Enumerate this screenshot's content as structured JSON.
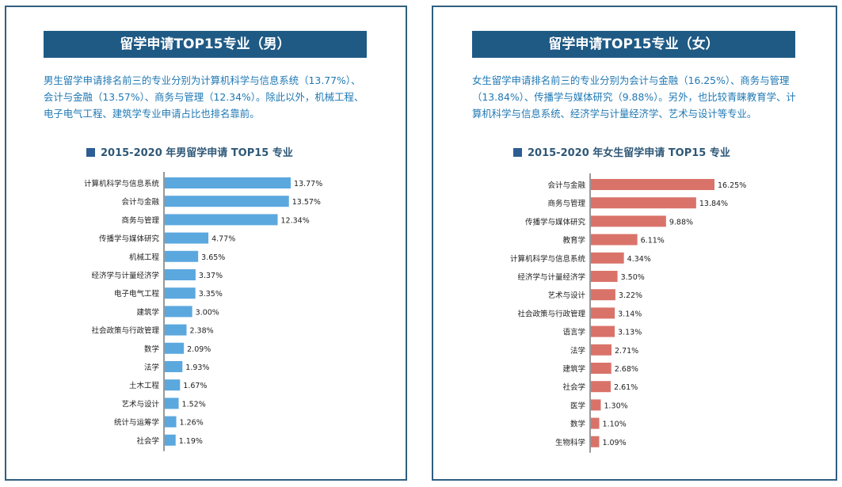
{
  "panels": [
    {
      "banner": "留学申请TOP15专业（男）",
      "description": "男生留学申请排名前三的专业分别为计算机科学与信息系统（13.77%）、会计与金融（13.57%）、商务与管理（12.34%）。除此以外，机械工程、电子电气工程、建筑学专业申请占比也排名靠前。"
    },
    {
      "banner": "留学申请TOP15专业（女）",
      "description": "女生留学申请排名前三的专业分别为会计与金融（16.25%）、商务与管理（13.84%）、传播学与媒体研究（9.88%）。另外，也比较青睐教育学、计算机科学与信息系统、经济学与计量经济学、艺术与设计等专业。"
    }
  ],
  "colors": {
    "male_bar": "#5ba8df",
    "female_bar": "#d9736a",
    "banner": "#1f5a85",
    "text_blue": "#1f78b4"
  },
  "chart_data": [
    {
      "type": "bar",
      "orientation": "horizontal",
      "title": "2015-2020 年男留学申请 TOP15 专业",
      "categories": [
        "计算机科学与信息系统",
        "会计与金融",
        "商务与管理",
        "传播学与媒体研究",
        "机械工程",
        "经济学与计量经济学",
        "电子电气工程",
        "建筑学",
        "社会政策与行政管理",
        "数学",
        "法学",
        "土木工程",
        "艺术与设计",
        "统计与运筹学",
        "社会学"
      ],
      "values": [
        13.77,
        13.57,
        12.34,
        4.77,
        3.65,
        3.37,
        3.35,
        3.0,
        2.38,
        2.09,
        1.93,
        1.67,
        1.52,
        1.26,
        1.19
      ],
      "labels": [
        "13.77%",
        "13.57%",
        "12.34%",
        "4.77%",
        "3.65%",
        "3.37%",
        "3.35%",
        "3.00%",
        "2.38%",
        "2.09%",
        "1.93%",
        "1.67%",
        "1.52%",
        "1.26%",
        "1.19%"
      ],
      "xlim": [
        0,
        17
      ],
      "grid": false
    },
    {
      "type": "bar",
      "orientation": "horizontal",
      "title": "2015-2020 年女生留学申请 TOP15 专业",
      "categories": [
        "会计与金融",
        "商务与管理",
        "传播学与媒体研究",
        "教育学",
        "计算机科学与信息系统",
        "经济学与计量经济学",
        "艺术与设计",
        "社会政策与行政管理",
        "语言学",
        "法学",
        "建筑学",
        "社会学",
        "医学",
        "数学",
        "生物科学"
      ],
      "values": [
        16.25,
        13.84,
        9.88,
        6.11,
        4.34,
        3.5,
        3.22,
        3.14,
        3.13,
        2.71,
        2.68,
        2.61,
        1.3,
        1.1,
        1.09
      ],
      "labels": [
        "16.25%",
        "13.84%",
        "9.88%",
        "6.11%",
        "4.34%",
        "3.50%",
        "3.22%",
        "3.14%",
        "3.13%",
        "2.71%",
        "2.68%",
        "2.61%",
        "1.30%",
        "1.10%",
        "1.09%"
      ],
      "xlim": [
        0,
        19
      ],
      "grid": false
    }
  ]
}
